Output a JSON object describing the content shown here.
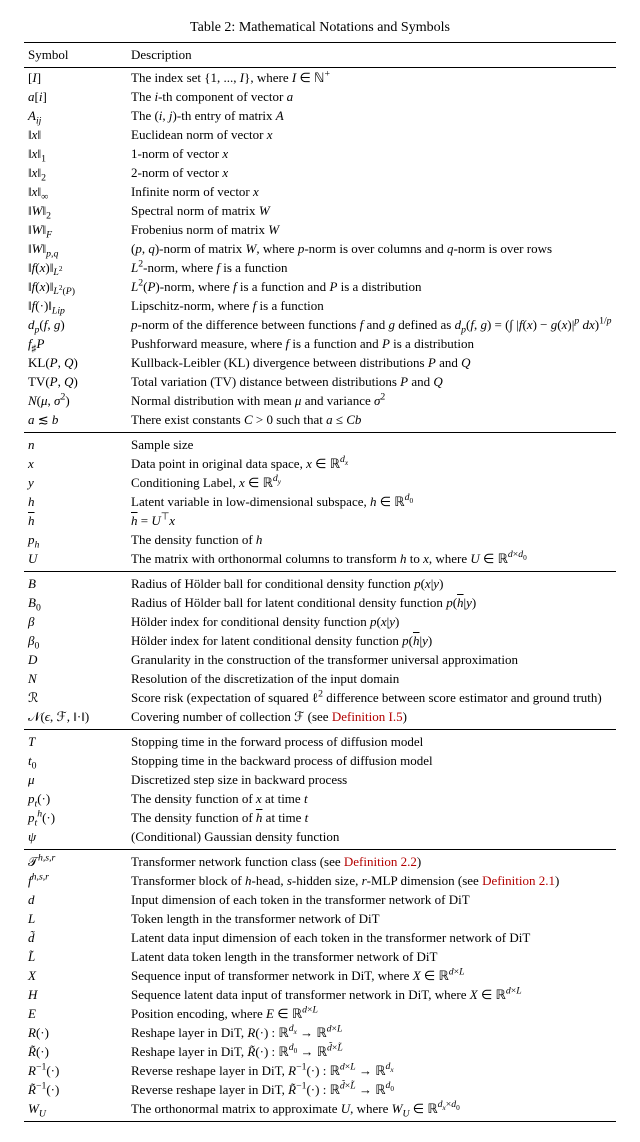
{
  "caption": "Table 2: Mathematical Notations and Symbols",
  "headers": {
    "symbol": "Symbol",
    "description": "Description"
  },
  "sections": [
    {
      "rows": [
        {
          "sym": "[<i>I</i>]",
          "desc": "The index set {1, ..., <i>I</i>}, where <i>I</i> ∈ ℕ<sup>+</sup>"
        },
        {
          "sym": "<i>a</i>[<i>i</i>]",
          "desc": "The <i>i</i>-th component of vector <i>a</i>"
        },
        {
          "sym": "<i>A<sub>ij</sub></i>",
          "desc": "The (<i>i</i>, <i>j</i>)-th entry of matrix <i>A</i>"
        },
        {
          "sym": "‖<i>x</i>‖",
          "desc": "Euclidean norm of vector <i>x</i>"
        },
        {
          "sym": "‖<i>x</i>‖<sub>1</sub>",
          "desc": "1-norm of vector <i>x</i>"
        },
        {
          "sym": "‖<i>x</i>‖<sub>2</sub>",
          "desc": "2-norm of vector <i>x</i>"
        },
        {
          "sym": "‖<i>x</i>‖<sub>∞</sub>",
          "desc": "Infinite norm of vector <i>x</i>"
        },
        {
          "sym": "‖<i>W</i>‖<sub>2</sub>",
          "desc": "Spectral norm of matrix <i>W</i>"
        },
        {
          "sym": "‖<i>W</i>‖<sub><i>F</i></sub>",
          "desc": "Frobenius norm of matrix <i>W</i>"
        },
        {
          "sym": "‖<i>W</i>‖<sub><i>p,q</i></sub>",
          "desc": "(<i>p</i>, <i>q</i>)-norm of matrix <i>W</i>, where <i>p</i>-norm is over columns and <i>q</i>-norm is over rows"
        },
        {
          "sym": "‖<i>f</i>(<i>x</i>)‖<sub><i>L</i><sup>2</sup></sub>",
          "desc": "<i>L</i><sup>2</sup>-norm, where <i>f</i> is a function"
        },
        {
          "sym": "‖<i>f</i>(<i>x</i>)‖<sub><i>L</i><sup>2</sup>(<i>P</i>)</sub>",
          "desc": "<i>L</i><sup>2</sup>(<i>P</i>)-norm, where <i>f</i> is a function and <i>P</i> is a distribution"
        },
        {
          "sym": "‖<i>f</i>(·)‖<sub><i>Lip</i></sub>",
          "desc": "Lipschitz-norm, where <i>f</i> is a function"
        },
        {
          "sym": "<i>d<sub>p</sub></i>(<i>f</i>, <i>g</i>)",
          "desc": "<i>p</i>-norm of the difference between functions <i>f</i> and <i>g</i> defined as <i>d<sub>p</sub></i>(<i>f</i>, <i>g</i>) = (∫ |<i>f</i>(<i>x</i>) − <i>g</i>(<i>x</i>)|<sup><i>p</i></sup> <i>dx</i>)<sup>1/<i>p</i></sup>"
        },
        {
          "sym": "<i>f</i><sub>♯</sub><i>P</i>",
          "desc": "Pushforward measure, where <i>f</i> is a function and <i>P</i> is a distribution"
        },
        {
          "sym": "KL(<i>P</i>, <i>Q</i>)",
          "desc": "Kullback-Leibler (KL) divergence between distributions <i>P</i> and <i>Q</i>"
        },
        {
          "sym": "TV(<i>P</i>, <i>Q</i>)",
          "desc": "Total variation (TV) distance between distributions <i>P</i> and <i>Q</i>"
        },
        {
          "sym": "<i>N</i>(<i>μ</i>, <i>σ</i><sup>2</sup>)",
          "desc": "Normal distribution with mean <i>μ</i> and variance <i>σ</i><sup>2</sup>"
        },
        {
          "sym": "<i>a</i> ≲ <i>b</i>",
          "desc": "There exist constants <i>C</i> &gt; 0 such that <i>a</i> ≤ <i>Cb</i>"
        }
      ]
    },
    {
      "rows": [
        {
          "sym": "<i>n</i>",
          "desc": "Sample size"
        },
        {
          "sym": "<i>x</i>",
          "desc": "Data point in original data space, <i>x</i> ∈ ℝ<sup><i>d<sub>x</sub></i></sup>"
        },
        {
          "sym": "<i>y</i>",
          "desc": "Conditioning Label, <i>x</i> ∈ ℝ<sup><i>d<sub>y</sub></i></sup>"
        },
        {
          "sym": "<i>h</i>",
          "desc": "Latent variable in low-dimensional subspace, <i>h</i> ∈ ℝ<sup><i>d</i><sub>0</sub></sup>"
        },
        {
          "sym": "<span style='text-decoration:overline'><i>h</i></span>",
          "desc": "<span style='text-decoration:overline'><i>h</i></span> = <i>U</i><sup>⊤</sup><i>x</i>"
        },
        {
          "sym": "<i>p<sub>h</sub></i>",
          "desc": "The density function of <i>h</i>"
        },
        {
          "sym": "<i>U</i>",
          "desc": "The matrix with orthonormal columns to transform <i>h</i> to <i>x</i>, where <i>U</i> ∈ ℝ<sup><i>d</i>×<i>d</i><sub>0</sub></sup>"
        }
      ]
    },
    {
      "rows": [
        {
          "sym": "<i>B</i>",
          "desc": "Radius of Hölder ball for conditional density function <i>p</i>(<i>x</i>|<i>y</i>)"
        },
        {
          "sym": "<i>B</i><sub>0</sub>",
          "desc": "Radius of Hölder ball for latent conditional density function <i>p</i>(<span style='text-decoration:overline'><i>h</i></span>|<i>y</i>)"
        },
        {
          "sym": "<i>β</i>",
          "desc": "Hölder index for conditional density function <i>p</i>(<i>x</i>|<i>y</i>)"
        },
        {
          "sym": "<i>β</i><sub>0</sub>",
          "desc": "Hölder index for latent conditional density function <i>p</i>(<span style='text-decoration:overline'><i>h</i></span>|<i>y</i>)"
        },
        {
          "sym": "<i>D</i>",
          "desc": "Granularity in the construction of the transformer universal approximation"
        },
        {
          "sym": "<i>N</i>",
          "desc": "Resolution of the discretization of the input domain"
        },
        {
          "sym": "ℛ",
          "desc": "Score risk (expectation of squared ℓ<sup>2</sup> difference between score estimator and ground truth)"
        },
        {
          "sym": "𝒩(<i>ϵ</i>, ℱ, ‖·‖)",
          "desc": "Covering number of collection ℱ (see <span class='deflink'>Definition I.5</span>)"
        }
      ]
    },
    {
      "rows": [
        {
          "sym": "<i>T</i>",
          "desc": "Stopping time in the forward process of diffusion model"
        },
        {
          "sym": "<i>t</i><sub>0</sub>",
          "desc": "Stopping time in the backward process of diffusion model"
        },
        {
          "sym": "<i>μ</i>",
          "desc": "Discretized step size in backward process"
        },
        {
          "sym": "<i>p<sub>t</sub></i>(·)",
          "desc": "The density function of <i>x</i> at time <i>t</i>"
        },
        {
          "sym": "<i>p</i><sub><i>t</i></sub><sup><i>h</i></sup>(·)",
          "desc": "The density function of <span style='text-decoration:overline'><i>h</i></span> at time <i>t</i>"
        },
        {
          "sym": "<i>ψ</i>",
          "desc": "(Conditional) Gaussian density function"
        }
      ]
    },
    {
      "rows": [
        {
          "sym": "𝒯<sup><i>h,s,r</i></sup>",
          "desc": "Transformer network function class (see <span class='deflink'>Definition 2.2</span>)"
        },
        {
          "sym": "<i>f</i><sup><i>h,s,r</i></sup>",
          "desc": "Transformer block of <i>h</i>-head, <i>s</i>-hidden size, <i>r</i>-MLP dimension (see <span class='deflink'>Definition 2.1</span>)"
        },
        {
          "sym": "<i>d</i>",
          "desc": "Input dimension of each token in the transformer network of DiT"
        },
        {
          "sym": "<i>L</i>",
          "desc": "Token length in the transformer network of DiT"
        },
        {
          "sym": "<i>d̃</i>",
          "desc": "Latent data input dimension of each token in the transformer network of DiT"
        },
        {
          "sym": "<i>L̃</i>",
          "desc": "Latent data token length in the transformer network of DiT"
        },
        {
          "sym": "<i>X</i>",
          "desc": "Sequence input of transformer network in DiT, where <i>X</i> ∈ ℝ<sup><i>d</i>×<i>L</i></sup>"
        },
        {
          "sym": "<i>H</i>",
          "desc": "Sequence latent data input of transformer network in DiT, where <i>X</i> ∈ ℝ<sup><i>d</i>×<i>L</i></sup>"
        },
        {
          "sym": "<i>E</i>",
          "desc": "Position encoding, where <i>E</i> ∈ ℝ<sup><i>d</i>×<i>L</i></sup>"
        },
        {
          "sym": "<i>R</i>(·)",
          "desc": "Reshape layer in DiT, <i>R</i>(·) : ℝ<sup><i>d<sub>x</sub></i></sup> → ℝ<sup><i>d</i>×<i>L</i></sup>"
        },
        {
          "sym": "<i>R̃</i>(·)",
          "desc": "Reshape layer in DiT, <i>R̃</i>(·) : ℝ<sup><i>d</i><sub>0</sub></sup> → ℝ<sup><i>d̃</i>×<i>L̃</i></sup>"
        },
        {
          "sym": "<i>R</i><sup>−1</sup>(·)",
          "desc": "Reverse reshape layer in DiT, <i>R</i><sup>−1</sup>(·) : ℝ<sup><i>d</i>×<i>L</i></sup> → ℝ<sup><i>d<sub>x</sub></i></sup>"
        },
        {
          "sym": "<i>R̃</i><sup>−1</sup>(·)",
          "desc": "Reverse reshape layer in DiT, <i>R̃</i><sup>−1</sup>(·) : ℝ<sup><i>d̃</i>×<i>L̃</i></sup> → ℝ<sup><i>d</i><sub>0</sub></sup>"
        },
        {
          "sym": "<i>W<sub>U</sub></i>",
          "desc": "The orthonormal matrix to approximate <i>U</i>, where <i>W<sub>U</sub></i> ∈ ℝ<sup><i>d<sub>x</sub></i>×<i>d</i><sub>0</sub></sup>"
        }
      ]
    }
  ]
}
